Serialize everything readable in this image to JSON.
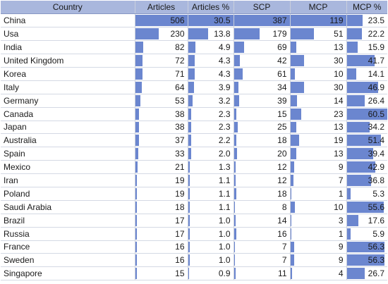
{
  "chart_data": {
    "type": "table",
    "columns": [
      "Country",
      "Articles",
      "Articles %",
      "SCP",
      "MCP",
      "MCP %"
    ],
    "rows": [
      {
        "country": "China",
        "articles": "506",
        "articles_pct": "30.5",
        "scp": "387",
        "mcp": "119",
        "mcp_pct": "23.5"
      },
      {
        "country": "Usa",
        "articles": "230",
        "articles_pct": "13.8",
        "scp": "179",
        "mcp": "51",
        "mcp_pct": "22.2"
      },
      {
        "country": "India",
        "articles": "82",
        "articles_pct": "4.9",
        "scp": "69",
        "mcp": "13",
        "mcp_pct": "15.9"
      },
      {
        "country": "United Kingdom",
        "articles": "72",
        "articles_pct": "4.3",
        "scp": "42",
        "mcp": "30",
        "mcp_pct": "41.7"
      },
      {
        "country": "Korea",
        "articles": "71",
        "articles_pct": "4.3",
        "scp": "61",
        "mcp": "10",
        "mcp_pct": "14.1"
      },
      {
        "country": "Italy",
        "articles": "64",
        "articles_pct": "3.9",
        "scp": "34",
        "mcp": "30",
        "mcp_pct": "46.9"
      },
      {
        "country": "Germany",
        "articles": "53",
        "articles_pct": "3.2",
        "scp": "39",
        "mcp": "14",
        "mcp_pct": "26.4"
      },
      {
        "country": "Canada",
        "articles": "38",
        "articles_pct": "2.3",
        "scp": "15",
        "mcp": "23",
        "mcp_pct": "60.5"
      },
      {
        "country": "Japan",
        "articles": "38",
        "articles_pct": "2.3",
        "scp": "25",
        "mcp": "13",
        "mcp_pct": "34.2"
      },
      {
        "country": "Australia",
        "articles": "37",
        "articles_pct": "2.2",
        "scp": "18",
        "mcp": "19",
        "mcp_pct": "51.4"
      },
      {
        "country": "Spain",
        "articles": "33",
        "articles_pct": "2.0",
        "scp": "20",
        "mcp": "13",
        "mcp_pct": "39.4"
      },
      {
        "country": "Mexico",
        "articles": "21",
        "articles_pct": "1.3",
        "scp": "12",
        "mcp": "9",
        "mcp_pct": "42.9"
      },
      {
        "country": "Iran",
        "articles": "19",
        "articles_pct": "1.1",
        "scp": "12",
        "mcp": "7",
        "mcp_pct": "36.8"
      },
      {
        "country": "Poland",
        "articles": "19",
        "articles_pct": "1.1",
        "scp": "18",
        "mcp": "1",
        "mcp_pct": "5.3"
      },
      {
        "country": "Saudi Arabia",
        "articles": "18",
        "articles_pct": "1.1",
        "scp": "8",
        "mcp": "10",
        "mcp_pct": "55.6"
      },
      {
        "country": "Brazil",
        "articles": "17",
        "articles_pct": "1.0",
        "scp": "14",
        "mcp": "3",
        "mcp_pct": "17.6"
      },
      {
        "country": "Russia",
        "articles": "17",
        "articles_pct": "1.0",
        "scp": "16",
        "mcp": "1",
        "mcp_pct": "5.9"
      },
      {
        "country": "France",
        "articles": "16",
        "articles_pct": "1.0",
        "scp": "7",
        "mcp": "9",
        "mcp_pct": "56.3"
      },
      {
        "country": "Sweden",
        "articles": "16",
        "articles_pct": "1.0",
        "scp": "7",
        "mcp": "9",
        "mcp_pct": "56.3"
      },
      {
        "country": "Singapore",
        "articles": "15",
        "articles_pct": "0.9",
        "scp": "11",
        "mcp": "4",
        "mcp_pct": "26.7"
      }
    ]
  },
  "colors": {
    "header_bg": "#a9b7dd",
    "data_bar": "#6b86cf",
    "grid_line": "#d4d9e4"
  }
}
